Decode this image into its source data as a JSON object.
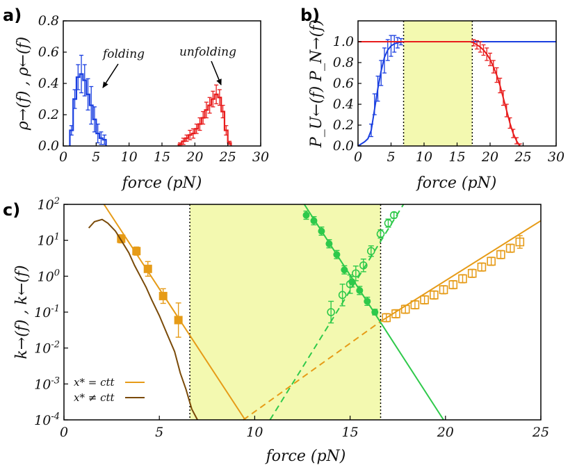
{
  "chart_data": [
    {
      "panel": "a)",
      "type": "line",
      "step": true,
      "xlabel": "force (pN)",
      "ylabel": "ρ→(f) , ρ←(f)",
      "xlim": [
        0,
        30
      ],
      "ylim": [
        0,
        0.8
      ],
      "xticks": [
        "0",
        "5",
        "10",
        "15",
        "20",
        "25",
        "30"
      ],
      "yticks": [
        "0.0",
        "0.2",
        "0.4",
        "0.6",
        "0.8"
      ],
      "annotations": [
        {
          "text": "folding",
          "x": 5.5,
          "y": 0.6,
          "arrow_to": [
            4.8,
            0.4
          ]
        },
        {
          "text": "unfolding",
          "x": 23.5,
          "y": 0.6,
          "arrow_to": [
            24.0,
            0.41
          ]
        }
      ],
      "series": [
        {
          "name": "folding",
          "color": "#1a3fe0",
          "x": [
            1.25,
            1.75,
            2.25,
            2.75,
            3.25,
            3.75,
            4.25,
            4.75,
            5.25,
            5.75,
            6.25
          ],
          "y": [
            0.1,
            0.3,
            0.44,
            0.46,
            0.42,
            0.33,
            0.26,
            0.17,
            0.08,
            0.05,
            0.04
          ],
          "err": [
            0.03,
            0.06,
            0.08,
            0.12,
            0.1,
            0.1,
            0.12,
            0.08,
            0.06,
            0.04,
            0.03
          ]
        },
        {
          "name": "unfolding",
          "color": "#e81c1c",
          "x": [
            17.75,
            18.25,
            18.75,
            19.25,
            19.75,
            20.25,
            20.75,
            21.25,
            21.75,
            22.25,
            22.75,
            23.25,
            23.75,
            24.25,
            24.75,
            25.25
          ],
          "y": [
            0.01,
            0.03,
            0.05,
            0.07,
            0.08,
            0.11,
            0.14,
            0.18,
            0.23,
            0.26,
            0.3,
            0.33,
            0.31,
            0.22,
            0.1,
            0.02
          ],
          "err": [
            0.01,
            0.02,
            0.02,
            0.03,
            0.03,
            0.03,
            0.04,
            0.04,
            0.05,
            0.05,
            0.05,
            0.06,
            0.05,
            0.04,
            0.03,
            0.01
          ]
        }
      ]
    },
    {
      "panel": "b)",
      "type": "line",
      "xlabel": "force (pN)",
      "ylabel": "P_U←(f) P_N→(f)",
      "xlim": [
        0,
        30
      ],
      "ylim": [
        0,
        1.2
      ],
      "xticks": [
        "0",
        "5",
        "10",
        "15",
        "20",
        "25",
        "30"
      ],
      "yticks": [
        "0.0",
        "0.2",
        "0.4",
        "0.6",
        "0.8",
        "1.0"
      ],
      "shaded_region": [
        6.9,
        17.3
      ],
      "vlines": [
        6.9,
        17.3
      ],
      "series": [
        {
          "name": "blue points",
          "color": "#1a3fe0",
          "x": [
            2.0,
            2.5,
            3.0,
            3.5,
            4.0,
            4.5,
            5.0,
            5.5,
            6.0,
            6.5
          ],
          "y": [
            0.15,
            0.4,
            0.55,
            0.7,
            0.82,
            0.92,
            0.96,
            0.98,
            0.99,
            1.0
          ],
          "err": [
            0.06,
            0.1,
            0.12,
            0.12,
            0.12,
            0.1,
            0.1,
            0.08,
            0.05,
            0.03
          ]
        },
        {
          "name": "blue fit",
          "color": "#1a3fe0",
          "x": [
            0.0,
            1.0,
            1.5,
            2.0,
            2.5,
            3.0,
            3.5,
            4.0,
            4.5,
            5.0,
            5.5,
            6.0,
            7.0,
            30.0
          ],
          "y": [
            0.0,
            0.04,
            0.07,
            0.15,
            0.35,
            0.55,
            0.72,
            0.85,
            0.92,
            0.96,
            0.98,
            0.99,
            1.0,
            1.0
          ]
        },
        {
          "name": "red points",
          "color": "#e81c1c",
          "x": [
            17.5,
            18.0,
            18.5,
            19.0,
            19.5,
            20.0,
            20.5,
            21.0,
            21.5,
            22.0,
            22.5,
            23.0,
            23.5,
            24.0,
            24.5
          ],
          "y": [
            0.99,
            0.97,
            0.95,
            0.92,
            0.88,
            0.83,
            0.76,
            0.68,
            0.58,
            0.46,
            0.34,
            0.22,
            0.12,
            0.05,
            0.01
          ],
          "err": [
            0.03,
            0.04,
            0.05,
            0.05,
            0.06,
            0.06,
            0.06,
            0.07,
            0.07,
            0.07,
            0.06,
            0.05,
            0.04,
            0.03,
            0.01
          ]
        },
        {
          "name": "red fit",
          "color": "#e81c1c",
          "x": [
            0.0,
            17.0,
            17.5,
            18.0,
            18.5,
            19.0,
            19.5,
            20.0,
            20.5,
            21.0,
            21.5,
            22.0,
            22.5,
            23.0,
            23.5,
            24.0,
            24.5
          ],
          "y": [
            1.0,
            1.0,
            0.99,
            0.97,
            0.95,
            0.92,
            0.88,
            0.83,
            0.76,
            0.68,
            0.58,
            0.46,
            0.34,
            0.22,
            0.12,
            0.05,
            0.0
          ]
        }
      ]
    },
    {
      "panel": "c)",
      "type": "scatter",
      "yscale": "log",
      "xlabel": "force (pN)",
      "ylabel": "k→(f) , k←(f)",
      "xlim": [
        0,
        25
      ],
      "ylim": [
        0.0001,
        100
      ],
      "xticks": [
        "0",
        "5",
        "10",
        "15",
        "20",
        "25"
      ],
      "ytick_exponents": [
        "2",
        "1",
        "0",
        "-1",
        "-2",
        "-3",
        "-4"
      ],
      "shaded_region": [
        6.6,
        16.6
      ],
      "vlines": [
        6.6,
        16.6
      ],
      "legend": [
        {
          "label": "x* = ctt",
          "color": "#e69b17"
        },
        {
          "label": "x* ≠ ctt",
          "color": "#7a4a08"
        }
      ],
      "series": [
        {
          "name": "orange filled squares",
          "color": "#e69b17",
          "marker": "filled-square",
          "x": [
            3.0,
            3.8,
            4.4,
            5.2,
            6.0
          ],
          "y": [
            11.0,
            5.0,
            1.6,
            0.28,
            0.06
          ],
          "err_factor": [
            1.3,
            1.3,
            1.6,
            1.6,
            3.0
          ]
        },
        {
          "name": "orange fit line",
          "color": "#e69b17",
          "style": "solid",
          "x": [
            2.1,
            9.5
          ],
          "y": [
            100,
            0.0001
          ]
        },
        {
          "name": "orange dashed extrapolation",
          "color": "#e69b17",
          "style": "dashed",
          "x": [
            9.4,
            16.6
          ],
          "y": [
            0.0001,
            0.055
          ]
        },
        {
          "name": "orange open squares",
          "color": "#e69b17",
          "marker": "open-square",
          "x": [
            16.9,
            17.4,
            17.9,
            18.4,
            18.9,
            19.4,
            19.9,
            20.4,
            20.9,
            21.4,
            21.9,
            22.4,
            22.9,
            23.4,
            23.9
          ],
          "y": [
            0.07,
            0.09,
            0.12,
            0.16,
            0.22,
            0.3,
            0.42,
            0.58,
            0.85,
            1.2,
            1.8,
            2.6,
            4.0,
            6.0,
            9.0
          ],
          "err_factor": [
            1.3,
            1.3,
            1.3,
            1.3,
            1.3,
            1.3,
            1.3,
            1.3,
            1.3,
            1.3,
            1.3,
            1.3,
            1.3,
            1.3,
            1.5
          ]
        },
        {
          "name": "orange open squares fit",
          "color": "#e69b17",
          "style": "solid",
          "x": [
            16.6,
            25.0
          ],
          "y": [
            0.055,
            35
          ]
        },
        {
          "name": "brown curve",
          "color": "#7a4a08",
          "style": "solid",
          "x": [
            1.3,
            1.6,
            2.0,
            2.3,
            2.7,
            3.0,
            3.4,
            3.7,
            4.0,
            4.3,
            4.6,
            5.0,
            5.4,
            5.8,
            6.1,
            6.4,
            6.7,
            7.0
          ],
          "y": [
            22,
            33,
            38,
            30,
            18,
            10,
            4.5,
            2.0,
            1.0,
            0.5,
            0.22,
            0.08,
            0.025,
            0.008,
            0.002,
            0.0007,
            0.0002,
            0.0001
          ]
        },
        {
          "name": "green filled circles",
          "color": "#2ec94a",
          "marker": "filled-circle",
          "x": [
            12.7,
            13.1,
            13.5,
            13.9,
            14.3,
            14.7,
            15.1,
            15.5,
            15.9,
            16.3
          ],
          "y": [
            50,
            35,
            18,
            8,
            4,
            1.5,
            0.7,
            0.4,
            0.2,
            0.1
          ],
          "err_factor": [
            1.3,
            1.3,
            1.3,
            1.3,
            1.3,
            1.3,
            1.4,
            1.3,
            1.3,
            1.2
          ]
        },
        {
          "name": "green solid fit",
          "color": "#2ec94a",
          "style": "solid",
          "x": [
            12.6,
            19.9
          ],
          "y": [
            100,
            0.0001
          ]
        },
        {
          "name": "green open circles",
          "color": "#2ec94a",
          "marker": "open-circle",
          "x": [
            14.0,
            14.6,
            15.0,
            15.3,
            15.7,
            16.1,
            16.6,
            17.0,
            17.3
          ],
          "y": [
            0.1,
            0.3,
            0.6,
            1.2,
            2.0,
            5.0,
            15,
            30,
            50
          ],
          "err_factor": [
            2.0,
            2.0,
            1.8,
            1.6,
            1.5,
            1.4,
            1.3,
            1.3,
            1.2
          ]
        },
        {
          "name": "green dashed fit",
          "color": "#2ec94a",
          "style": "dashed",
          "x": [
            10.8,
            17.8
          ],
          "y": [
            0.0001,
            100
          ]
        }
      ]
    }
  ],
  "annotations_text": {
    "folding": "folding",
    "unfolding": "unfolding"
  }
}
